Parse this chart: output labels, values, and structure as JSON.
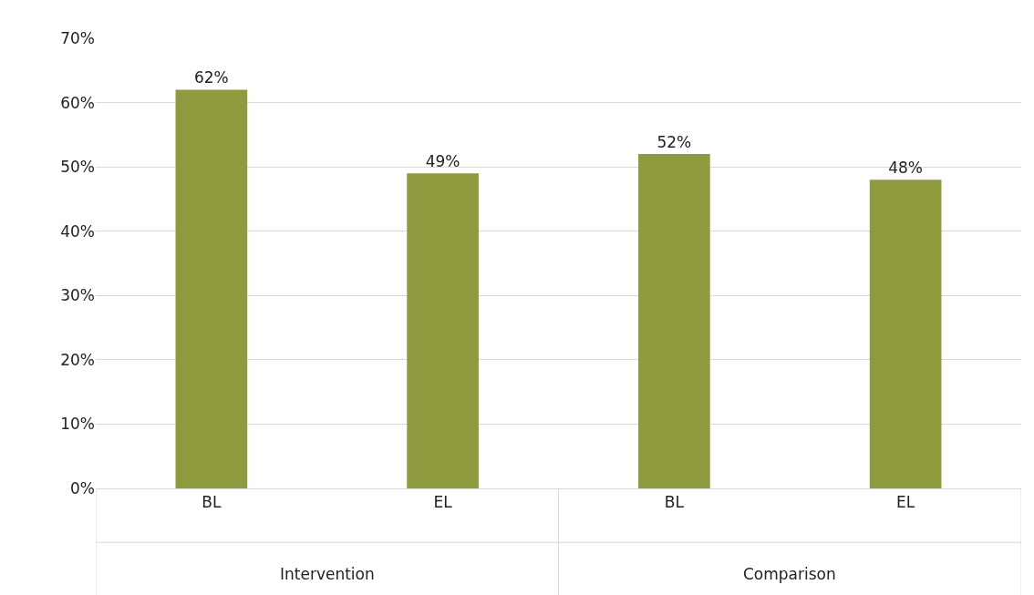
{
  "chart_data": {
    "type": "bar",
    "categories": [
      "BL",
      "EL",
      "BL",
      "EL"
    ],
    "values": [
      62,
      49,
      52,
      48
    ],
    "color": "#8f9a3e",
    "value_labels": [
      "62%",
      "49%",
      "52%",
      "48%"
    ],
    "ylim": [
      0,
      70
    ],
    "yticks": [
      {
        "value": 0,
        "label": "0%"
      },
      {
        "value": 10,
        "label": "10%"
      },
      {
        "value": 20,
        "label": "20%"
      },
      {
        "value": 30,
        "label": "30%"
      },
      {
        "value": 40,
        "label": "40%"
      },
      {
        "value": 50,
        "label": "50%"
      },
      {
        "value": 60,
        "label": "60%"
      },
      {
        "value": 70,
        "label": "70%"
      }
    ],
    "grid": "y",
    "annotations": [
      "Intervention",
      "Comparison"
    ]
  }
}
